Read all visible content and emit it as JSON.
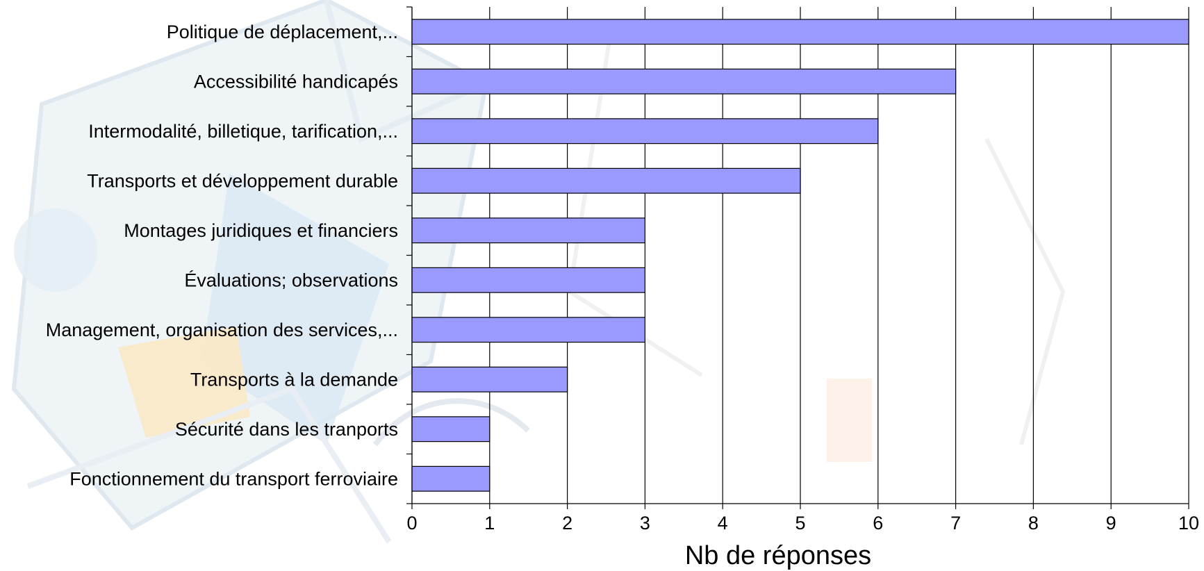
{
  "chart_data": {
    "type": "bar",
    "orientation": "horizontal",
    "categories": [
      "Politique de déplacement,...",
      "Accessibilité handicapés",
      "Intermodalité, billetique, tarification,...",
      "Transports et développement durable",
      "Montages juridiques et financiers",
      "Évaluations; observations",
      "Management, organisation des services,...",
      "Transports à la demande",
      "Sécurité dans les tranports",
      "Fonctionnement du transport ferroviaire"
    ],
    "values": [
      10,
      7,
      6,
      5,
      3,
      3,
      3,
      2,
      1,
      1
    ],
    "xlabel": "Nb de réponses",
    "ylabel": "",
    "title": "",
    "xlim": [
      0,
      10
    ],
    "xticks": [
      "0",
      "1",
      "2",
      "3",
      "4",
      "5",
      "6",
      "7",
      "8",
      "9",
      "10"
    ],
    "grid": "vertical",
    "legend": "none",
    "colors": {
      "bar_fill": "#9999ff",
      "bar_stroke": "#000000",
      "grid": "#000000",
      "background_watermark": "#e6eef5"
    }
  }
}
